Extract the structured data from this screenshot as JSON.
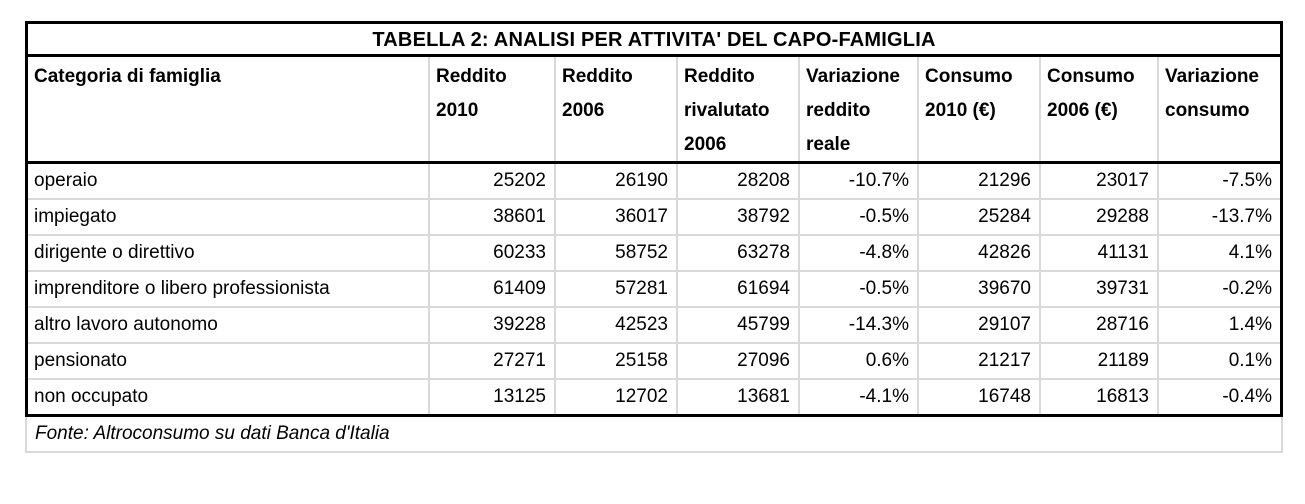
{
  "table": {
    "title": "TABELLA 2: ANALISI PER ATTIVITA' DEL CAPO-FAMIGLIA",
    "columns": [
      "Categoria di famiglia",
      "Reddito 2010",
      "Reddito 2006",
      "Reddito rivalutato 2006",
      "Variazione reddito reale",
      "Consumo 2010 (€)",
      "Consumo 2006 (€)",
      "Variazione consumo"
    ],
    "rows": [
      {
        "cells": [
          "operaio",
          "25202",
          "26190",
          "28208",
          "-10.7%",
          "21296",
          "23017",
          "-7.5%"
        ]
      },
      {
        "cells": [
          "impiegato",
          "38601",
          "36017",
          "38792",
          "-0.5%",
          "25284",
          "29288",
          "-13.7%"
        ]
      },
      {
        "cells": [
          "dirigente o direttivo",
          "60233",
          "58752",
          "63278",
          "-4.8%",
          "42826",
          "41131",
          "4.1%"
        ]
      },
      {
        "cells": [
          "imprenditore o libero professionista",
          "61409",
          "57281",
          "61694",
          "-0.5%",
          "39670",
          "39731",
          "-0.2%"
        ]
      },
      {
        "cells": [
          "altro lavoro autonomo",
          "39228",
          "42523",
          "45799",
          "-14.3%",
          "29107",
          "28716",
          "1.4%"
        ]
      },
      {
        "cells": [
          "pensionato",
          "27271",
          "25158",
          "27096",
          "0.6%",
          "21217",
          "21189",
          "0.1%"
        ]
      },
      {
        "cells": [
          "non occupato",
          "13125",
          "12702",
          "13681",
          "-4.1%",
          "16748",
          "16813",
          "-0.4%"
        ]
      }
    ],
    "source_note": "Fonte: Altroconsumo su dati Banca d'Italia"
  },
  "colors": {
    "border": "#000000",
    "grid_line": "#d9d9d9",
    "background": "#ffffff",
    "text": "#000000"
  }
}
